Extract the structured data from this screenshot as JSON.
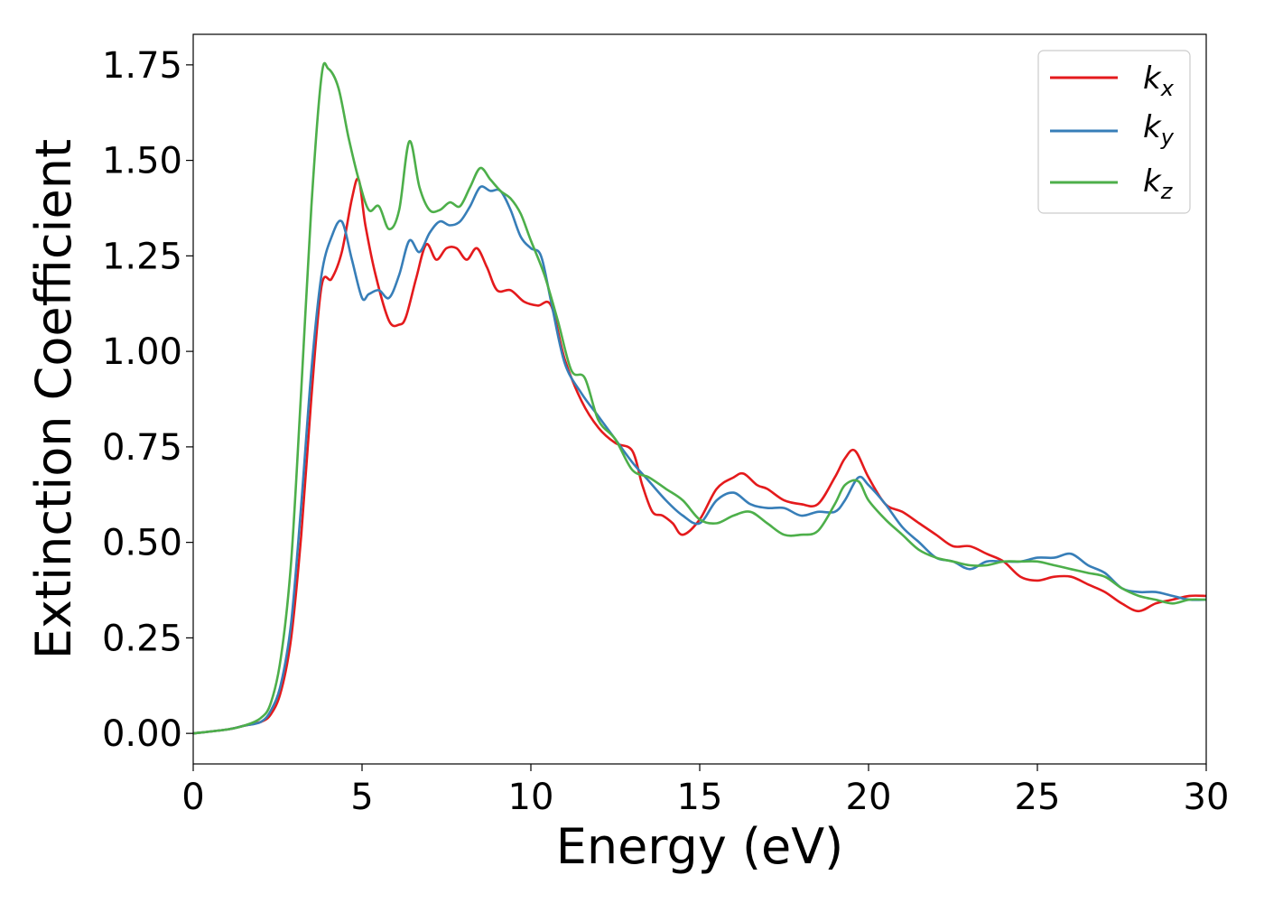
{
  "chart_data": {
    "type": "line",
    "xlabel": "Energy (eV)",
    "ylabel": "Extinction Coefficient",
    "xlim": [
      0,
      30
    ],
    "ylim": [
      -0.08,
      1.83
    ],
    "xticks": [
      "0",
      "5",
      "10",
      "15",
      "20",
      "25",
      "30"
    ],
    "yticks": [
      "0.00",
      "0.25",
      "0.50",
      "0.75",
      "1.00",
      "1.25",
      "1.50",
      "1.75"
    ],
    "grid": false,
    "legend_position": "top-right",
    "colors": {
      "kx": "#e41a1c",
      "ky": "#377eb8",
      "kz": "#4daf4a"
    },
    "series": [
      {
        "name": "k",
        "subscript": "x",
        "color": "#e41a1c",
        "x": [
          0,
          1,
          1.5,
          2,
          2.3,
          2.6,
          2.9,
          3.2,
          3.5,
          3.8,
          4.1,
          4.4,
          4.7,
          4.9,
          5.1,
          5.4,
          5.8,
          6.1,
          6.3,
          6.6,
          6.9,
          7.2,
          7.5,
          7.8,
          8.1,
          8.4,
          8.7,
          9.0,
          9.4,
          9.8,
          10.2,
          10.6,
          11.0,
          11.5,
          12.0,
          12.5,
          13.0,
          13.3,
          13.6,
          13.9,
          14.2,
          14.5,
          15.0,
          15.5,
          16.0,
          16.3,
          16.7,
          17.0,
          17.5,
          18.0,
          18.5,
          19.0,
          19.3,
          19.6,
          20.0,
          20.5,
          21.0,
          21.5,
          22.0,
          22.5,
          23.0,
          23.5,
          24.0,
          24.5,
          25.0,
          25.5,
          26.0,
          26.5,
          27.0,
          27.5,
          28.0,
          28.5,
          29.0,
          29.5,
          30.0
        ],
        "values": [
          0,
          0.01,
          0.02,
          0.03,
          0.05,
          0.11,
          0.25,
          0.52,
          0.88,
          1.17,
          1.19,
          1.26,
          1.4,
          1.45,
          1.33,
          1.2,
          1.08,
          1.07,
          1.09,
          1.19,
          1.28,
          1.24,
          1.27,
          1.27,
          1.24,
          1.27,
          1.22,
          1.16,
          1.16,
          1.13,
          1.12,
          1.12,
          0.98,
          0.87,
          0.8,
          0.76,
          0.74,
          0.65,
          0.58,
          0.57,
          0.55,
          0.52,
          0.56,
          0.64,
          0.67,
          0.68,
          0.65,
          0.64,
          0.61,
          0.6,
          0.6,
          0.67,
          0.72,
          0.74,
          0.67,
          0.6,
          0.58,
          0.55,
          0.52,
          0.49,
          0.49,
          0.47,
          0.45,
          0.41,
          0.4,
          0.41,
          0.41,
          0.39,
          0.37,
          0.34,
          0.32,
          0.34,
          0.35,
          0.36,
          0.36
        ]
      },
      {
        "name": "k",
        "subscript": "y",
        "color": "#377eb8",
        "x": [
          0,
          1,
          1.5,
          2,
          2.3,
          2.6,
          2.9,
          3.2,
          3.5,
          3.8,
          4.1,
          4.4,
          4.7,
          5.0,
          5.2,
          5.5,
          5.8,
          6.1,
          6.4,
          6.7,
          7.0,
          7.3,
          7.6,
          7.9,
          8.2,
          8.5,
          8.8,
          9.1,
          9.4,
          9.7,
          10.0,
          10.3,
          10.6,
          11.0,
          11.5,
          12.0,
          12.5,
          13.0,
          13.5,
          14.0,
          14.5,
          15.0,
          15.5,
          16.0,
          16.5,
          17.0,
          17.5,
          18.0,
          18.5,
          19.0,
          19.3,
          19.7,
          20.0,
          20.5,
          21.0,
          21.5,
          22.0,
          22.5,
          23.0,
          23.5,
          24.0,
          24.5,
          25.0,
          25.5,
          26.0,
          26.5,
          27.0,
          27.5,
          28.0,
          28.5,
          29.0,
          29.5,
          30.0
        ],
        "values": [
          0,
          0.01,
          0.02,
          0.03,
          0.06,
          0.13,
          0.29,
          0.6,
          0.95,
          1.2,
          1.3,
          1.34,
          1.24,
          1.14,
          1.15,
          1.16,
          1.14,
          1.2,
          1.29,
          1.26,
          1.31,
          1.34,
          1.33,
          1.34,
          1.38,
          1.43,
          1.42,
          1.42,
          1.37,
          1.3,
          1.27,
          1.25,
          1.13,
          0.97,
          0.89,
          0.83,
          0.77,
          0.71,
          0.66,
          0.61,
          0.57,
          0.55,
          0.61,
          0.63,
          0.6,
          0.59,
          0.59,
          0.57,
          0.58,
          0.58,
          0.61,
          0.67,
          0.65,
          0.6,
          0.54,
          0.5,
          0.46,
          0.45,
          0.43,
          0.45,
          0.45,
          0.45,
          0.46,
          0.46,
          0.47,
          0.44,
          0.42,
          0.38,
          0.37,
          0.37,
          0.36,
          0.35,
          0.35
        ]
      },
      {
        "name": "k",
        "subscript": "z",
        "color": "#4daf4a",
        "x": [
          0,
          1,
          1.5,
          2,
          2.3,
          2.6,
          2.9,
          3.2,
          3.5,
          3.8,
          4.0,
          4.3,
          4.6,
          4.9,
          5.2,
          5.5,
          5.8,
          6.1,
          6.4,
          6.7,
          7.0,
          7.3,
          7.6,
          7.9,
          8.2,
          8.5,
          8.8,
          9.1,
          9.4,
          9.7,
          10.0,
          10.4,
          10.8,
          11.2,
          11.6,
          12.0,
          12.5,
          13.0,
          13.5,
          14.0,
          14.5,
          15.0,
          15.5,
          16.0,
          16.5,
          17.0,
          17.5,
          18.0,
          18.5,
          19.0,
          19.3,
          19.7,
          20.0,
          20.5,
          21.0,
          21.5,
          22.0,
          22.5,
          23.0,
          23.5,
          24.0,
          24.5,
          25.0,
          25.5,
          26.0,
          26.5,
          27.0,
          27.5,
          28.0,
          28.5,
          29.0,
          29.5,
          30.0
        ],
        "values": [
          0,
          0.01,
          0.02,
          0.04,
          0.08,
          0.2,
          0.45,
          0.9,
          1.38,
          1.72,
          1.74,
          1.69,
          1.56,
          1.45,
          1.37,
          1.38,
          1.32,
          1.37,
          1.55,
          1.43,
          1.37,
          1.37,
          1.39,
          1.38,
          1.43,
          1.48,
          1.45,
          1.42,
          1.4,
          1.36,
          1.29,
          1.2,
          1.08,
          0.95,
          0.93,
          0.82,
          0.77,
          0.69,
          0.67,
          0.64,
          0.61,
          0.56,
          0.55,
          0.57,
          0.58,
          0.55,
          0.52,
          0.52,
          0.53,
          0.6,
          0.65,
          0.66,
          0.61,
          0.56,
          0.52,
          0.48,
          0.46,
          0.45,
          0.44,
          0.44,
          0.45,
          0.45,
          0.45,
          0.44,
          0.43,
          0.42,
          0.41,
          0.38,
          0.36,
          0.35,
          0.34,
          0.35,
          0.35
        ]
      }
    ]
  }
}
